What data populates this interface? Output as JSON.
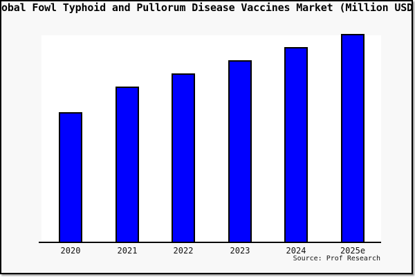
{
  "chart_data": {
    "type": "bar",
    "title": "obal Fowl Typhoid and Pullorum Disease Vaccines Market (Million USD",
    "title_note": "title is cropped at both screenshot edges; full title implied: Global Fowl Typhoid and Pullorum Disease Vaccines Market (Million USD)",
    "categories": [
      "2020",
      "2021",
      "2022",
      "2023",
      "2024",
      "2025e"
    ],
    "values": [
      100,
      120,
      130,
      140,
      150,
      160
    ],
    "values_unit": "relative index (no y-axis labels shown; 2020 bar = 100, heights estimated from pixels)",
    "xlabel": "",
    "ylabel": "",
    "ylim": [
      0,
      160
    ],
    "grid": false,
    "y_axis_visible": false,
    "legend": null,
    "source": "Source: Prof Research"
  },
  "colors": {
    "bar_fill": "#0000ff",
    "bar_border": "#000000",
    "plot_background": "#ffffff",
    "page_background": "#f8f8f8",
    "frame_border": "#000000",
    "text": "#000000"
  }
}
